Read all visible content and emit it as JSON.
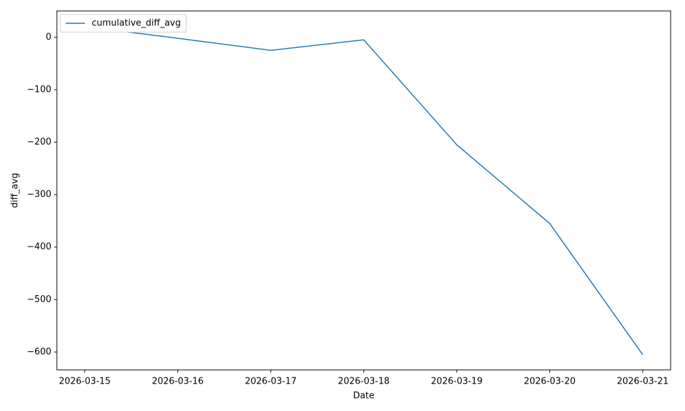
{
  "chart_data": {
    "type": "line",
    "x": [
      "2026-03-15",
      "2026-03-16",
      "2026-03-17",
      "2026-03-18",
      "2026-03-19",
      "2026-03-20",
      "2026-03-21"
    ],
    "series": [
      {
        "name": "cumulative_diff_avg",
        "color": "#1f77b4",
        "values": [
          20,
          -2,
          -25,
          -5,
          -205,
          -355,
          -605
        ]
      }
    ],
    "xlabel": "Date",
    "ylabel": "diff_avg",
    "ylim": [
      -634,
      50
    ],
    "yticks": [
      {
        "value": 0,
        "label": "0"
      },
      {
        "value": -100,
        "label": "−100"
      },
      {
        "value": -200,
        "label": "−200"
      },
      {
        "value": -300,
        "label": "−300"
      },
      {
        "value": -400,
        "label": "−400"
      },
      {
        "value": -500,
        "label": "−500"
      },
      {
        "value": -600,
        "label": "−600"
      }
    ],
    "xticks": [
      "2026-03-15",
      "2026-03-16",
      "2026-03-17",
      "2026-03-18",
      "2026-03-19",
      "2026-03-20",
      "2026-03-21"
    ],
    "legend": "upper left"
  }
}
